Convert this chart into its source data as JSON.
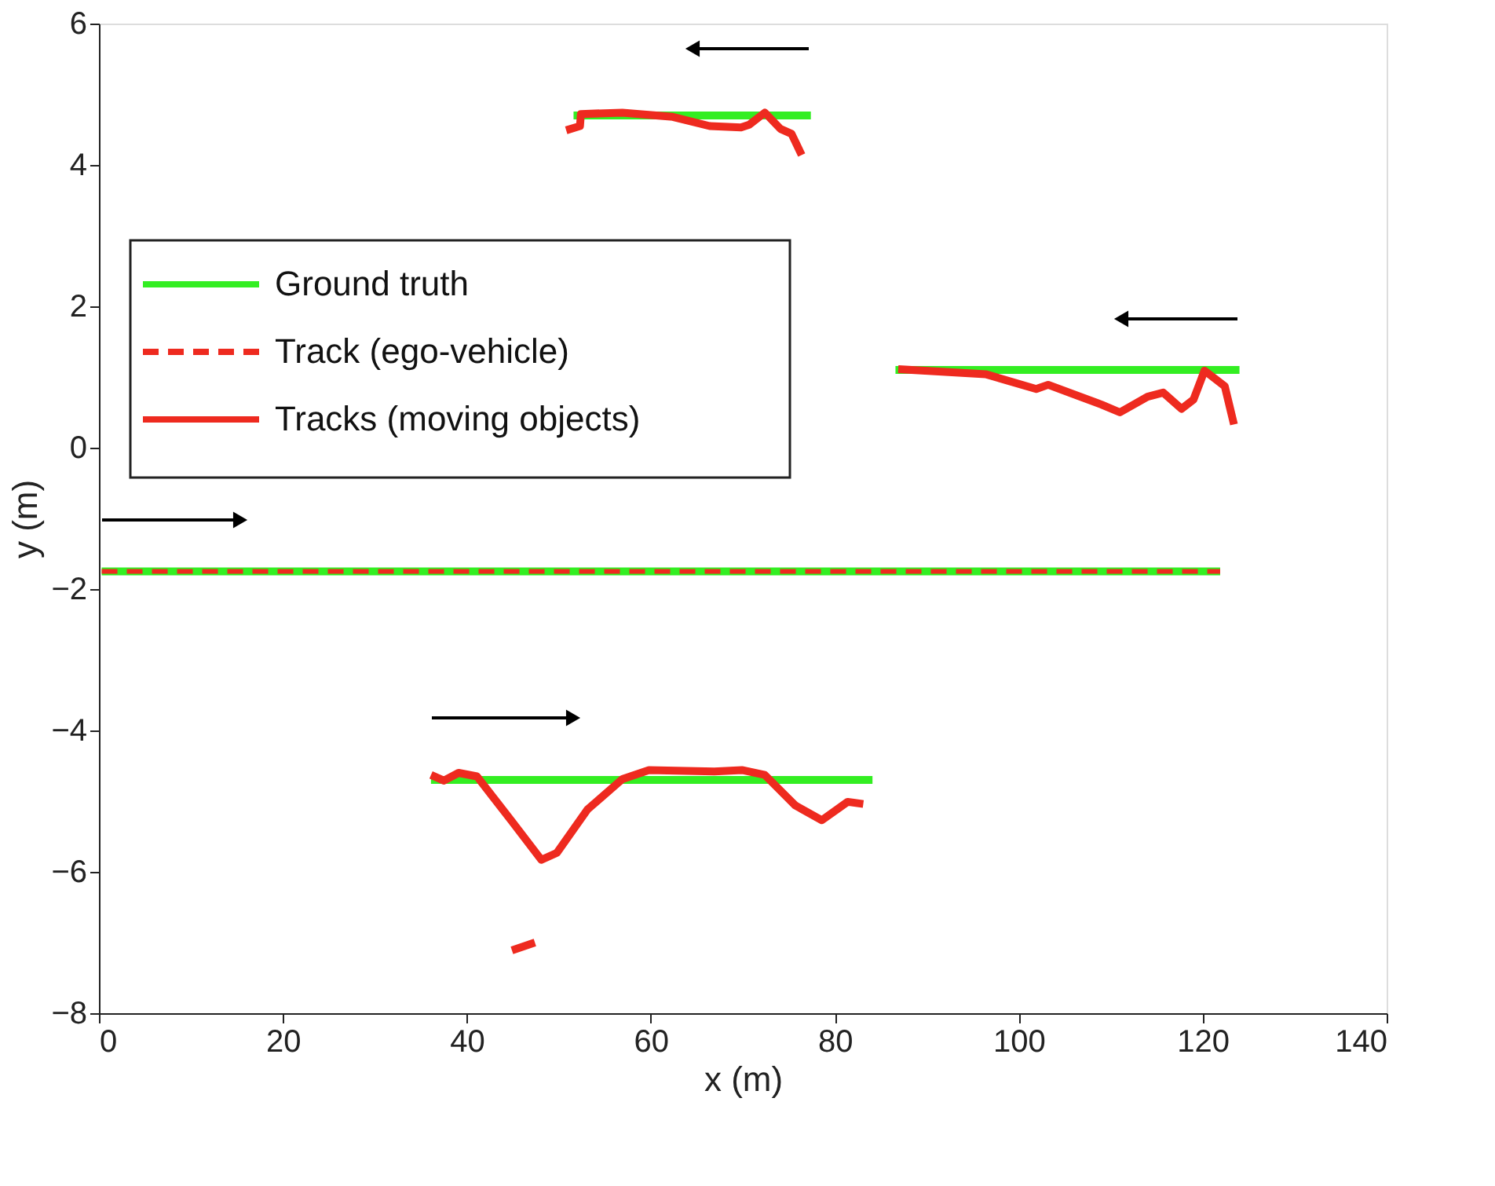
{
  "chart_data": {
    "type": "line",
    "xlabel": "x (m)",
    "ylabel": "y (m)",
    "xlim": [
      0,
      140
    ],
    "xticks": [
      0,
      20,
      40,
      60,
      80,
      100,
      120,
      140
    ],
    "ylim": [
      -8,
      6
    ],
    "yticks": [
      -8,
      -6,
      -4,
      -2,
      0,
      2,
      4,
      6
    ],
    "grid": false,
    "legend": "top left",
    "marker": "none",
    "series": [
      {
        "name": "Ground truth",
        "color": "#33ee22",
        "line_style": "solid",
        "x": [
          51.6,
          77.4
        ],
        "values": [
          4.7,
          4.7
        ]
      },
      {
        "color": "#33ee22",
        "line_style": "solid",
        "x": [
          86.6,
          124.0
        ],
        "values": [
          1.1,
          1.1
        ]
      },
      {
        "color": "#33ee22",
        "line_style": "solid",
        "x": [
          0.3,
          121.9
        ],
        "values": [
          -1.75,
          -1.75
        ]
      },
      {
        "color": "#33ee22",
        "line_style": "solid",
        "x": [
          36.1,
          84.1
        ],
        "values": [
          -4.7,
          -4.7
        ]
      },
      {
        "name": "Track (ego-vehicle)",
        "color": "#ee2a1f",
        "line_style": "dashed",
        "x": [
          0.3,
          121.9
        ],
        "values": [
          -1.75,
          -1.75
        ]
      },
      {
        "name": "Tracks (moving objects)",
        "color": "#ee2a1f",
        "line_style": "solid",
        "x": [
          50.8,
          52.3,
          52.4,
          56.9,
          62.4,
          66.4,
          69.8,
          70.7,
          72.4,
          74.1,
          75.3,
          76.4
        ],
        "values": [
          4.49,
          4.55,
          4.72,
          4.74,
          4.68,
          4.55,
          4.53,
          4.57,
          4.74,
          4.51,
          4.44,
          4.14
        ]
      },
      {
        "color": "#ee2a1f",
        "line_style": "solid",
        "x": [
          86.9,
          96.4,
          101.9,
          103.2,
          109.0,
          111.0,
          114.0,
          115.7,
          117.7,
          119.0,
          120.2,
          122.4,
          123.4
        ],
        "values": [
          1.11,
          1.04,
          0.83,
          0.89,
          0.61,
          0.5,
          0.72,
          0.78,
          0.55,
          0.68,
          1.09,
          0.87,
          0.33
        ]
      },
      {
        "color": "#ee2a1f",
        "line_style": "solid",
        "x": [
          36.1,
          37.5,
          39.1,
          41.1,
          44.8,
          48.1,
          49.8,
          53.1,
          56.9,
          59.8,
          66.9,
          69.9,
          72.4,
          75.7,
          78.6,
          81.4,
          83.1
        ],
        "values": [
          -4.63,
          -4.71,
          -4.6,
          -4.65,
          -5.27,
          -5.83,
          -5.73,
          -5.12,
          -4.69,
          -4.56,
          -4.58,
          -4.56,
          -4.63,
          -5.06,
          -5.27,
          -5.01,
          -5.04
        ]
      },
      {
        "color": "#ee2a1f",
        "line_style": "solid",
        "x": [
          44.9,
          47.4
        ],
        "values": [
          -7.11,
          -7.0
        ]
      }
    ]
  }
}
